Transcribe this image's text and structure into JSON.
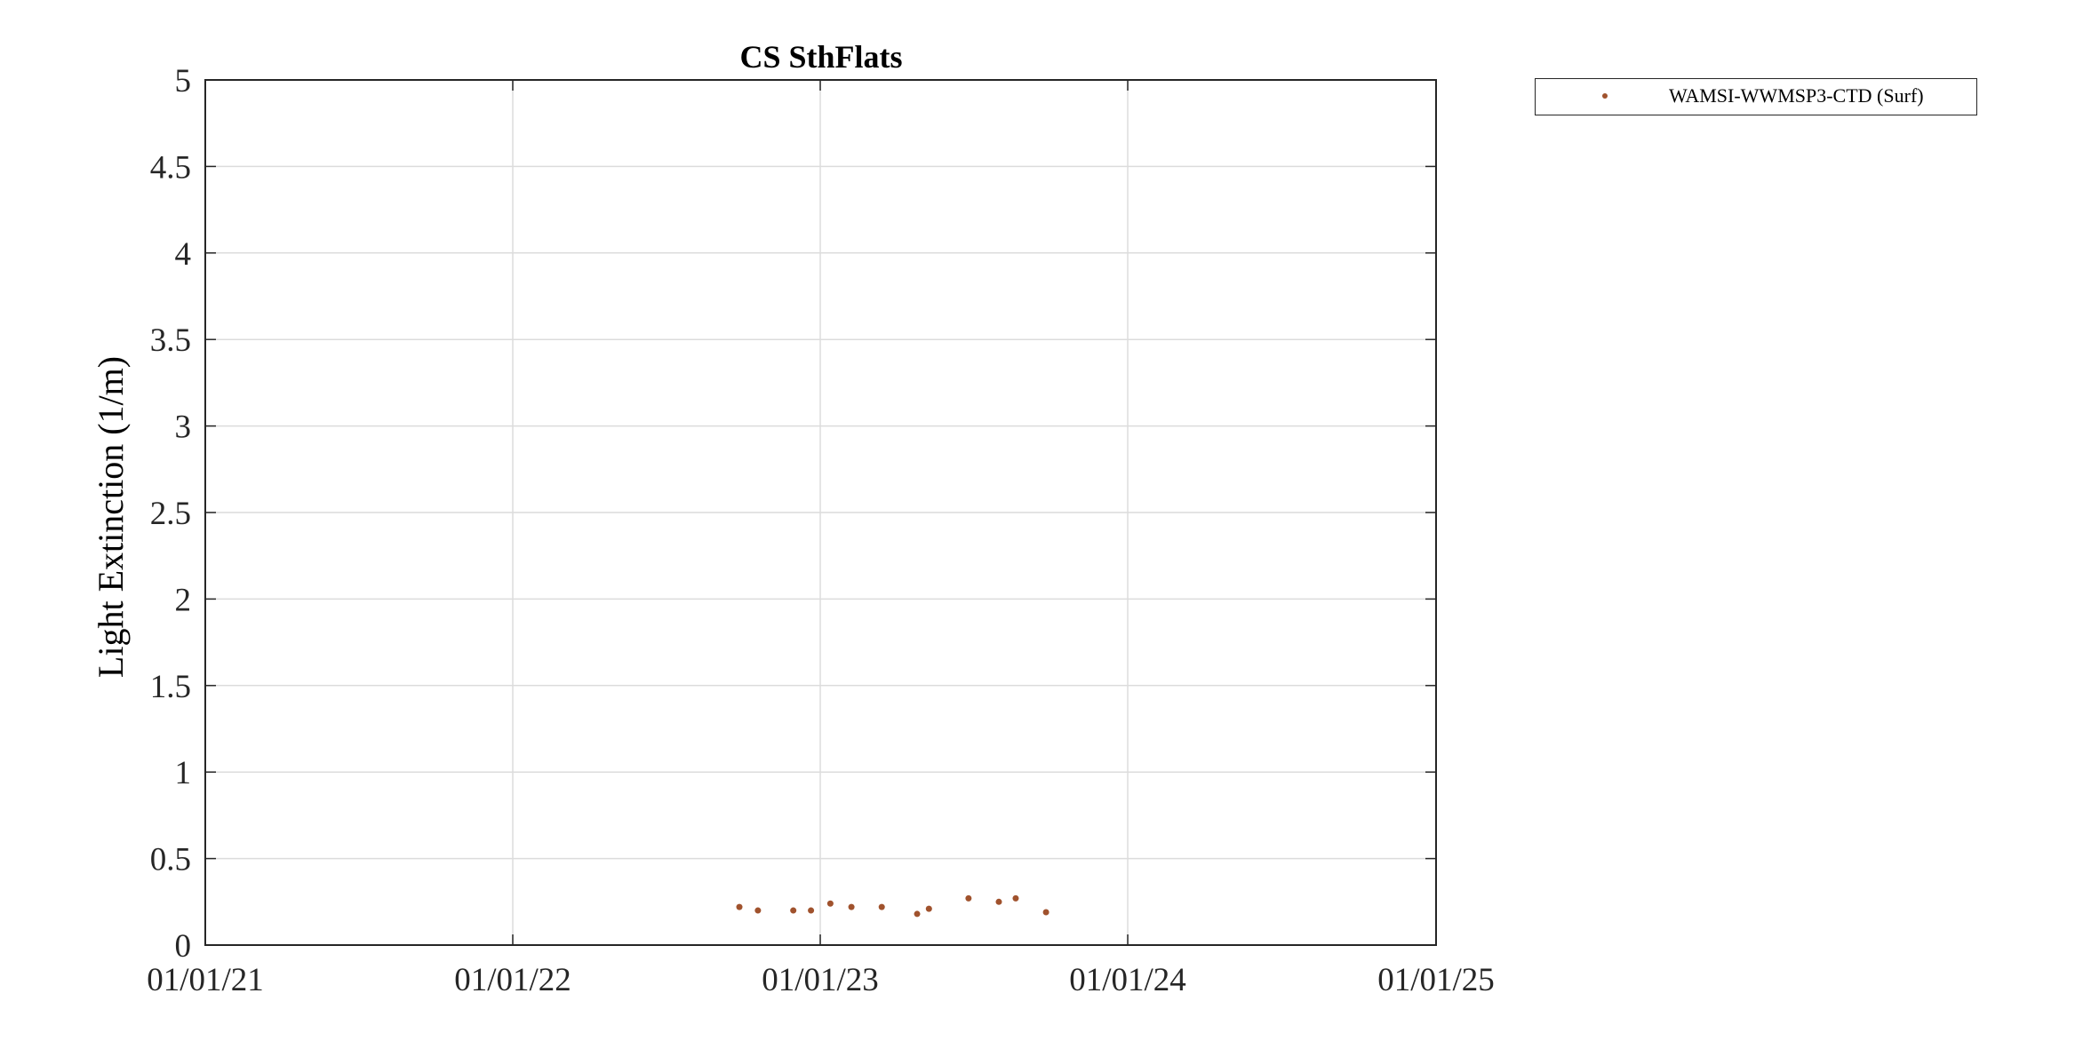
{
  "chart_data": {
    "type": "scatter",
    "title": "CS SthFlats",
    "ylabel": "Light Extinction (1/m)",
    "xlabel": "",
    "x_ticks": [
      "01/01/21",
      "01/01/22",
      "01/01/23",
      "01/01/24",
      "01/01/25"
    ],
    "y_ticks": [
      "0",
      "0.5",
      "1",
      "1.5",
      "2",
      "2.5",
      "3",
      "3.5",
      "4",
      "4.5",
      "5"
    ],
    "xlim": [
      "2021-01-01",
      "2025-01-01"
    ],
    "ylim": [
      0,
      5
    ],
    "grid": true,
    "legend_position": "outside-top-right",
    "series": [
      {
        "name": "WAMSI-WWMSP3-CTD (Surf)",
        "color": "#A0522D",
        "marker": "dot",
        "points": [
          {
            "x": "2022-09-27",
            "y": 0.22
          },
          {
            "x": "2022-10-19",
            "y": 0.2
          },
          {
            "x": "2022-11-30",
            "y": 0.2
          },
          {
            "x": "2022-12-21",
            "y": 0.2
          },
          {
            "x": "2023-01-13",
            "y": 0.24
          },
          {
            "x": "2023-02-07",
            "y": 0.22
          },
          {
            "x": "2023-03-15",
            "y": 0.22
          },
          {
            "x": "2023-04-26",
            "y": 0.18
          },
          {
            "x": "2023-05-10",
            "y": 0.21
          },
          {
            "x": "2023-06-26",
            "y": 0.27
          },
          {
            "x": "2023-08-01",
            "y": 0.25
          },
          {
            "x": "2023-08-21",
            "y": 0.27
          },
          {
            "x": "2023-09-26",
            "y": 0.19
          }
        ]
      }
    ]
  }
}
